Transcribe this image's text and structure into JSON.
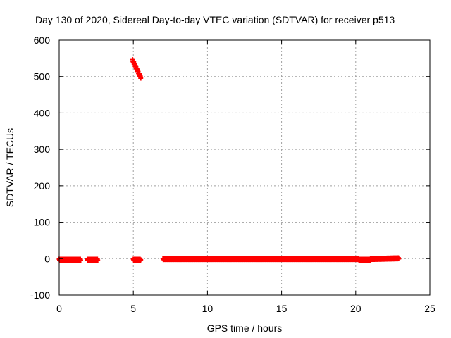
{
  "chart_data": {
    "type": "scatter",
    "title": "Day 130 of 2020, Sidereal Day-to-day VTEC variation (SDTVAR) for receiver p513",
    "xlabel": "GPS time / hours",
    "ylabel": "SDTVAR / TECUs",
    "xlim": [
      0,
      25
    ],
    "ylim": [
      -100,
      600
    ],
    "xticks": [
      0,
      5,
      10,
      15,
      20,
      25
    ],
    "yticks": [
      -100,
      0,
      100,
      200,
      300,
      400,
      500,
      600
    ],
    "grid": true,
    "marker": "+",
    "color": "#ff0000",
    "series": [
      {
        "name": "SDTVAR",
        "segments": [
          {
            "x_start": 0.0,
            "x_end": 1.45,
            "y_start": -3,
            "y_end": -3
          },
          {
            "x_start": 1.9,
            "x_end": 2.6,
            "y_start": -3,
            "y_end": -3
          },
          {
            "x_start": 5.0,
            "x_end": 5.5,
            "y_start": -3,
            "y_end": -3
          },
          {
            "x_start": 4.95,
            "x_end": 5.5,
            "y_start": 545,
            "y_end": 497
          },
          {
            "x_start": 7.0,
            "x_end": 20.2,
            "y_start": -1,
            "y_end": -1
          },
          {
            "x_start": 20.2,
            "x_end": 21.0,
            "y_start": -3,
            "y_end": -3
          },
          {
            "x_start": 21.0,
            "x_end": 22.9,
            "y_start": -1,
            "y_end": 1
          }
        ]
      }
    ]
  }
}
